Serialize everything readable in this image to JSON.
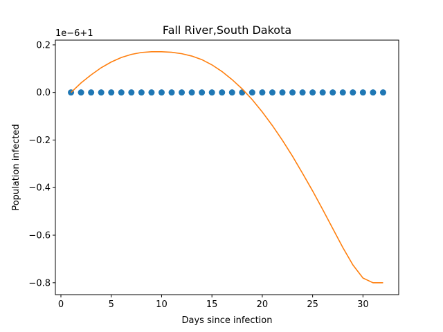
{
  "chart_data": {
    "type": "scatter",
    "title": "Fall River,South Dakota",
    "xlabel": "Days since infection",
    "ylabel": "Population infected",
    "y_offset_label": "1e−6+1",
    "xlim": [
      -0.55,
      33.55
    ],
    "ylim": [
      -0.85,
      0.22
    ],
    "x_ticks": [
      0,
      5,
      10,
      15,
      20,
      25,
      30
    ],
    "x_tick_labels": [
      "0",
      "5",
      "10",
      "15",
      "20",
      "25",
      "30"
    ],
    "y_ticks": [
      0.2,
      0.0,
      -0.2,
      -0.4,
      -0.6,
      -0.8
    ],
    "y_tick_labels": [
      "0.2",
      "0.0",
      "−0.2",
      "−0.4",
      "−0.6",
      "−0.8"
    ],
    "grid": false,
    "series": [
      {
        "kind": "scatter",
        "color": "#1f77b4",
        "x": [
          1,
          2,
          3,
          4,
          5,
          6,
          7,
          8,
          9,
          10,
          11,
          12,
          13,
          14,
          15,
          16,
          17,
          18,
          19,
          20,
          21,
          22,
          23,
          24,
          25,
          26,
          27,
          28,
          29,
          30,
          31,
          32
        ],
        "y": [
          0,
          0,
          0,
          0,
          0,
          0,
          0,
          0,
          0,
          0,
          0,
          0,
          0,
          0,
          0,
          0,
          0,
          0,
          0,
          0,
          0,
          0,
          0,
          0,
          0,
          0,
          0,
          0,
          0,
          0,
          0,
          0
        ]
      },
      {
        "kind": "line",
        "color": "#ff7f0e",
        "x": [
          1,
          2,
          3,
          4,
          5,
          6,
          7,
          8,
          9,
          10,
          11,
          12,
          13,
          14,
          15,
          16,
          17,
          18,
          19,
          20,
          21,
          22,
          23,
          24,
          25,
          26,
          27,
          28,
          29,
          30,
          31,
          32
        ],
        "y": [
          0.0,
          0.04,
          0.074,
          0.104,
          0.128,
          0.147,
          0.16,
          0.168,
          0.171,
          0.171,
          0.169,
          0.163,
          0.153,
          0.138,
          0.116,
          0.088,
          0.054,
          0.015,
          -0.03,
          -0.082,
          -0.139,
          -0.201,
          -0.268,
          -0.34,
          -0.414,
          -0.492,
          -0.572,
          -0.652,
          -0.725,
          -0.78,
          -0.8,
          -0.8
        ]
      }
    ]
  }
}
